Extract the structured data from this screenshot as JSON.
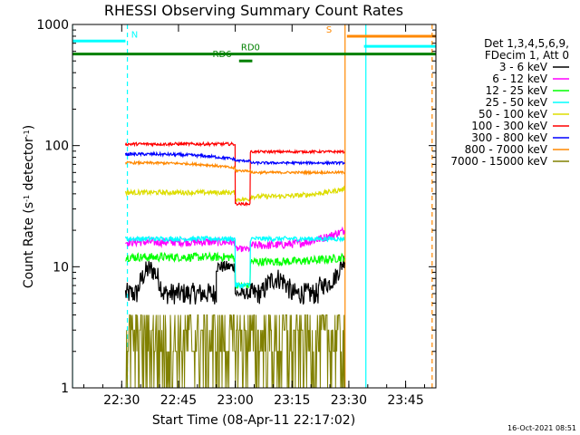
{
  "chart_data": {
    "type": "line",
    "title": "RHESSI Observing Summary Count Rates",
    "xlabel": "Start Time (08-Apr-11 22:17:02)",
    "ylabel_parts": [
      "Count Rate (s",
      "-1",
      " detector",
      "-1",
      ")"
    ],
    "ylog": true,
    "xlim_minutes": [
      0,
      96
    ],
    "ylim": [
      1,
      1000
    ],
    "x_ticks": [
      {
        "label": "22:30",
        "t": 13
      },
      {
        "label": "22:45",
        "t": 28
      },
      {
        "label": "23:00",
        "t": 43
      },
      {
        "label": "23:15",
        "t": 58
      },
      {
        "label": "23:30",
        "t": 73
      },
      {
        "label": "23:45",
        "t": 88
      }
    ],
    "y_ticks": [
      {
        "label": "1",
        "v": 1
      },
      {
        "label": "10",
        "v": 10
      },
      {
        "label": "100",
        "v": 100
      },
      {
        "label": "1000",
        "v": 1000
      }
    ],
    "legend_header": [
      "Det 1,3,4,5,6,9,",
      "FDecim 1, Att 0"
    ],
    "series": [
      {
        "name": "3 - 6 keV",
        "color": "#000000",
        "segments": [
          {
            "t0": 14,
            "t1": 38,
            "v": 6,
            "jitter": 0.18,
            "shape": "bump",
            "bump": 9.5,
            "bump_t0": 17,
            "bump_t1": 24
          },
          {
            "t0": 38,
            "t1": 43,
            "v": 10,
            "jitter": 0.1
          },
          {
            "t0": 43,
            "t1": 47,
            "v": 6,
            "jitter": 0.1
          },
          {
            "t0": 47,
            "t1": 65,
            "v": 6,
            "jitter": 0.18,
            "shape": "bump",
            "bump": 8,
            "bump_t0": 50,
            "bump_t1": 58
          },
          {
            "t0": 65,
            "t1": 72,
            "v": 7,
            "jitter": 0.15,
            "shape": "ramp",
            "v_end": 12
          }
        ]
      },
      {
        "name": "6 - 12 keV",
        "color": "#ff00ff",
        "segments": [
          {
            "t0": 14,
            "t1": 43,
            "v": 16,
            "jitter": 0.07
          },
          {
            "t0": 43,
            "t1": 47,
            "v": 14,
            "jitter": 0.05
          },
          {
            "t0": 47,
            "t1": 72,
            "v": 15,
            "jitter": 0.07,
            "shape": "ramp",
            "v_end": 20
          }
        ]
      },
      {
        "name": "12 - 25 keV",
        "color": "#00ff00",
        "segments": [
          {
            "t0": 14,
            "t1": 43,
            "v": 12,
            "jitter": 0.07
          },
          {
            "t0": 43,
            "t1": 47,
            "v": 7,
            "jitter": 0.05
          },
          {
            "t0": 47,
            "t1": 72,
            "v": 11,
            "jitter": 0.07,
            "shape": "ramp",
            "v_end": 12
          }
        ]
      },
      {
        "name": "25 - 50 keV",
        "color": "#00ffff",
        "segments": [
          {
            "t0": 14,
            "t1": 43,
            "v": 17,
            "jitter": 0.04
          },
          {
            "t0": 43,
            "t1": 47,
            "v": 7,
            "jitter": 0.05
          },
          {
            "t0": 47,
            "t1": 72,
            "v": 17,
            "jitter": 0.04
          }
        ]
      },
      {
        "name": "50 - 100 keV",
        "color": "#dddd00",
        "segments": [
          {
            "t0": 14,
            "t1": 43,
            "v": 41,
            "jitter": 0.04
          },
          {
            "t0": 43,
            "t1": 47,
            "v": 36,
            "jitter": 0.03
          },
          {
            "t0": 47,
            "t1": 72,
            "v": 38,
            "jitter": 0.04,
            "shape": "ramp",
            "v_end": 44
          }
        ]
      },
      {
        "name": "100 - 300 keV",
        "color": "#ff0000",
        "segments": [
          {
            "t0": 14,
            "t1": 43,
            "v": 103,
            "jitter": 0.025
          },
          {
            "t0": 43,
            "t1": 47,
            "v": 33,
            "jitter": 0.02
          },
          {
            "t0": 47,
            "t1": 72,
            "v": 89,
            "jitter": 0.02
          }
        ]
      },
      {
        "name": "300 - 800 keV",
        "color": "#0000ff",
        "segments": [
          {
            "t0": 14,
            "t1": 43,
            "v": 85,
            "jitter": 0.025,
            "shape": "ramp",
            "v_end": 77
          },
          {
            "t0": 43,
            "t1": 47,
            "v": 75,
            "jitter": 0.02
          },
          {
            "t0": 47,
            "t1": 72,
            "v": 72,
            "jitter": 0.02
          }
        ]
      },
      {
        "name": "800 - 7000 keV",
        "color": "#ff8800",
        "segments": [
          {
            "t0": 14,
            "t1": 43,
            "v": 72,
            "jitter": 0.02,
            "shape": "ramp",
            "v_end": 65
          },
          {
            "t0": 43,
            "t1": 47,
            "v": 62,
            "jitter": 0.02
          },
          {
            "t0": 47,
            "t1": 72,
            "v": 60,
            "jitter": 0.02
          }
        ]
      },
      {
        "name": "7000 - 15000 keV",
        "color": "#808000",
        "segments": [
          {
            "t0": 14,
            "t1": 72,
            "v": 2.5,
            "jitter": 0.35,
            "shape": "steps"
          }
        ]
      }
    ],
    "flags": [
      {
        "label": "N",
        "color": "#00ffff",
        "t0": 0,
        "t1": 14,
        "level": 730,
        "text_t": 15.5
      },
      {
        "label": "",
        "color": "#00ffff",
        "t0": 77,
        "t1": 96,
        "level": 660,
        "text_t": null
      },
      {
        "label": "S",
        "color": "#ff8800",
        "t0": 72.5,
        "t1": 96,
        "level": 800,
        "text_t": 67
      },
      {
        "label": "RD0",
        "color": "#008000",
        "t0": 0,
        "t1": 96,
        "level": 570,
        "text_t": 44.5
      },
      {
        "label": "RD6",
        "color": "#008000",
        "t0": 44,
        "t1": 47.5,
        "level": 500,
        "text_t": 37
      }
    ],
    "vlines": [
      {
        "t": 0,
        "color": "#00ffff",
        "style": "solid"
      },
      {
        "t": 14.5,
        "color": "#00ffff",
        "style": "dashed"
      },
      {
        "t": 72,
        "color": "#ff8800",
        "style": "solid"
      },
      {
        "t": 77.5,
        "color": "#00ffff",
        "style": "solid"
      },
      {
        "t": 95,
        "color": "#ff8800",
        "style": "dashed"
      }
    ],
    "timestamp": "16-Oct-2021 08:51"
  }
}
